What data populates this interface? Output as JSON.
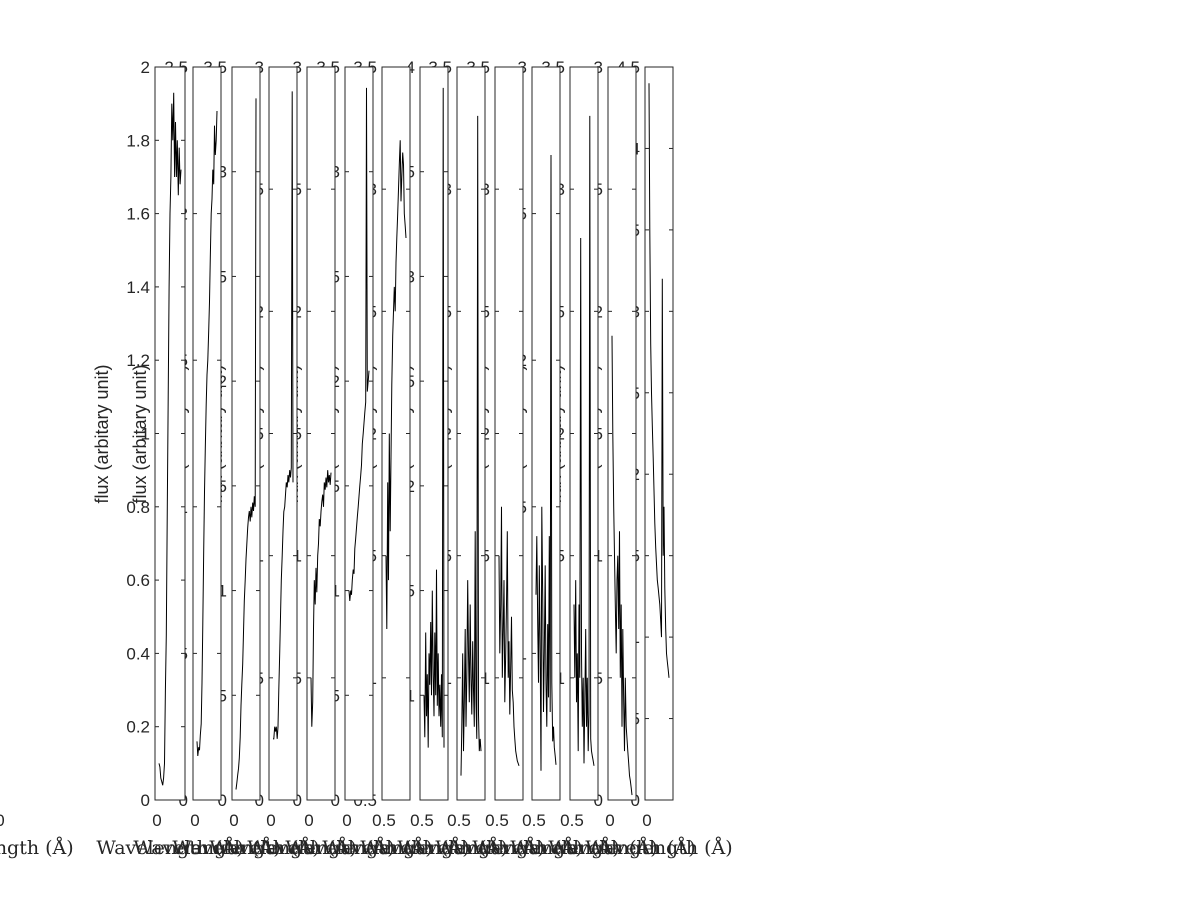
{
  "chart_data": [
    {
      "type": "line",
      "title": "",
      "xlabel": "Wavelength ($\\AA$)",
      "ylabel": "flux (arbitary unit)",
      "ylim": [
        0,
        2
      ],
      "yticks": [
        0,
        0.2,
        0.4,
        0.6,
        0.8,
        1,
        1.2,
        1.4,
        1.6,
        1.8,
        2
      ],
      "xtick_labels": [
        "0"
      ],
      "grid": false,
      "series": [
        {
          "x": [
            0,
            1,
            2,
            3,
            4,
            5,
            6,
            7,
            8,
            9,
            10,
            11,
            12,
            13,
            14,
            15,
            16,
            17,
            18,
            19,
            20,
            21,
            22,
            23,
            24
          ],
          "values": [
            0.1,
            0.09,
            0.06,
            0.05,
            0.04,
            0.06,
            0.1,
            0.3,
            0.45,
            0.8,
            1.1,
            1.4,
            1.6,
            1.7,
            1.9,
            1.8,
            1.93,
            1.7,
            1.85,
            1.7,
            1.8,
            1.65,
            1.78,
            1.68,
            1.72
          ]
        }
      ]
    },
    {
      "type": "line",
      "title": "",
      "xlabel": "Wavelength ($\\AA$)",
      "ylabel": "flux (arbitary unit)",
      "ylim": [
        0,
        2.5
      ],
      "yticks": [
        0,
        0.5,
        1,
        1.5,
        2,
        2.5
      ],
      "xtick_labels": [
        "0"
      ],
      "grid": false,
      "series": [
        {
          "x": [
            0,
            1,
            2,
            3,
            4,
            5,
            6,
            7,
            8,
            9,
            10,
            11,
            12,
            13,
            14,
            15,
            16,
            17,
            18,
            19,
            20,
            21,
            22,
            23,
            24
          ],
          "values": [
            0.2,
            0.15,
            0.18,
            0.17,
            0.22,
            0.26,
            0.4,
            0.6,
            0.85,
            1.05,
            1.2,
            1.35,
            1.45,
            1.5,
            1.6,
            1.7,
            1.85,
            2.0,
            2.05,
            2.15,
            2.1,
            2.3,
            2.2,
            2.25,
            2.35
          ]
        }
      ]
    },
    {
      "type": "line",
      "title": "",
      "xlabel": "Wavelength ($\\AA$)",
      "ylabel": "flux (arbitary unit)",
      "ylim": [
        0,
        3.5
      ],
      "yticks": [
        0,
        0.5,
        1,
        1.5,
        2,
        2.5,
        3,
        3.5
      ],
      "xtick_labels": [
        "0"
      ],
      "grid": false,
      "series": [
        {
          "x": [
            0,
            1,
            2,
            3,
            4,
            5,
            6,
            7,
            8,
            9,
            10,
            11,
            12,
            13,
            14,
            15,
            16,
            17,
            18,
            19,
            20,
            21,
            22,
            23,
            24
          ],
          "values": [
            0.05,
            0.08,
            0.12,
            0.15,
            0.2,
            0.3,
            0.45,
            0.55,
            0.65,
            0.8,
            0.95,
            1.05,
            1.15,
            1.22,
            1.3,
            1.35,
            1.38,
            1.33,
            1.4,
            1.35,
            1.42,
            1.38,
            1.45,
            1.4,
            3.35
          ]
        }
      ]
    },
    {
      "type": "line",
      "title": "",
      "xlabel": "Wavelength ($\\AA$)",
      "ylabel": "flux (arbitary unit)",
      "ylim": [
        0,
        3
      ],
      "yticks": [
        0,
        0.5,
        1,
        1.5,
        2,
        2.5,
        3
      ],
      "xtick_labels": [
        "0"
      ],
      "grid": false,
      "series": [
        {
          "x": [
            0,
            1,
            2,
            3,
            4,
            5,
            6,
            7,
            8,
            9,
            10,
            11,
            12,
            13,
            14,
            15,
            16,
            17,
            18,
            19,
            20,
            21,
            22,
            23,
            24
          ],
          "values": [
            0.25,
            0.25,
            0.3,
            0.28,
            0.3,
            0.25,
            0.3,
            0.45,
            0.6,
            0.75,
            0.9,
            1.0,
            1.1,
            1.18,
            1.2,
            1.25,
            1.3,
            1.28,
            1.33,
            1.3,
            1.35,
            1.32,
            1.36,
            2.9,
            1.3
          ]
        }
      ]
    },
    {
      "type": "line",
      "title": "",
      "xlabel": "Wavelength ($\\AA$)",
      "ylabel": "flux (arbitary unit)",
      "ylim": [
        0,
        3
      ],
      "yticks": [
        0,
        0.5,
        1,
        1.5,
        2,
        2.5,
        3
      ],
      "xtick_labels": [
        "0"
      ],
      "grid": false,
      "series": [
        {
          "x": [
            0,
            1,
            2,
            3,
            4,
            5,
            6,
            7,
            8,
            9,
            10,
            11,
            12,
            13,
            14,
            15,
            16,
            17,
            18,
            19,
            20,
            21,
            22,
            23,
            24
          ],
          "values": [
            0.5,
            0.3,
            0.4,
            0.7,
            0.9,
            0.8,
            0.95,
            0.85,
            1.0,
            1.05,
            1.15,
            1.12,
            1.18,
            1.22,
            1.25,
            1.2,
            1.3,
            1.27,
            1.32,
            1.28,
            1.35,
            1.3,
            1.33,
            1.29,
            1.34
          ]
        }
      ]
    },
    {
      "type": "line",
      "title": "",
      "xlabel": "Wavelength ($\\AA$)",
      "ylabel": "flux (arbitary unit)",
      "ylim": [
        0,
        3.5
      ],
      "yticks": [
        0,
        0.5,
        1,
        1.5,
        2,
        2.5,
        3,
        3.5
      ],
      "xtick_labels": [
        "0"
      ],
      "grid": false,
      "series": [
        {
          "x": [
            0,
            1,
            2,
            3,
            4,
            5,
            6,
            7,
            8,
            9,
            10,
            11,
            12,
            13,
            14,
            15,
            16,
            17,
            18,
            19,
            20,
            21,
            22,
            23,
            24
          ],
          "values": [
            1.0,
            0.95,
            1.0,
            0.98,
            1.05,
            1.1,
            1.08,
            1.2,
            1.25,
            1.3,
            1.35,
            1.4,
            1.45,
            1.5,
            1.55,
            1.6,
            1.7,
            1.75,
            1.8,
            1.85,
            1.9,
            3.4,
            1.95,
            2.0,
            2.05
          ]
        }
      ]
    },
    {
      "type": "line",
      "title": "",
      "xlabel": "Wavelength ($\\AA$)",
      "ylabel": "flux (arbitary unit)",
      "ylim": [
        0.5,
        3.5
      ],
      "yticks": [
        0.5,
        1,
        1.5,
        2,
        2.5,
        3,
        3.5
      ],
      "xtick_labels": [
        "0.5"
      ],
      "grid": false,
      "series": [
        {
          "x": [
            0,
            1,
            2,
            3,
            4,
            5,
            6,
            7,
            8,
            9,
            10,
            11,
            12,
            13,
            14,
            15,
            16,
            17,
            18,
            19,
            20,
            21,
            22,
            23,
            24
          ],
          "values": [
            1.5,
            1.2,
            1.8,
            1.4,
            2.0,
            1.6,
            1.9,
            2.2,
            2.4,
            2.5,
            2.6,
            2.5,
            2.7,
            2.8,
            2.9,
            3.0,
            3.1,
            3.2,
            2.95,
            3.05,
            3.15,
            3.1,
            2.9,
            2.85,
            2.8
          ]
        }
      ]
    },
    {
      "type": "line",
      "title": "",
      "xlabel": "Wavelength ($\\AA$)",
      "ylabel": "flux (arbitary unit)",
      "ylim": [
        0.5,
        4
      ],
      "yticks": [
        1,
        1.5,
        2,
        2.5,
        3,
        3.5,
        4
      ],
      "xtick_labels": [
        "0.5"
      ],
      "grid": false,
      "series": [
        {
          "x": [
            0,
            1,
            2,
            3,
            4,
            5,
            6,
            7,
            8,
            9,
            10,
            11,
            12,
            13,
            14,
            15,
            16,
            17,
            18,
            19,
            20,
            21,
            22,
            23,
            24
          ],
          "values": [
            1.0,
            0.8,
            1.3,
            0.9,
            1.1,
            0.75,
            1.2,
            1.05,
            1.35,
            1.0,
            1.5,
            1.1,
            0.9,
            1.3,
            1.0,
            1.6,
            0.95,
            1.2,
            0.9,
            1.05,
            0.85,
            1.1,
            0.8,
            3.9,
            0.75
          ]
        }
      ]
    },
    {
      "type": "line",
      "title": "",
      "xlabel": "Wavelength ($\\AA$)",
      "ylabel": "flux (arbitary unit)",
      "ylim": [
        0.5,
        3.5
      ],
      "yticks": [
        1,
        1.5,
        2,
        2.5,
        3,
        3.5
      ],
      "xtick_labels": [
        "0.5"
      ],
      "grid": false,
      "series": [
        {
          "x": [
            0,
            1,
            2,
            3,
            4,
            5,
            6,
            7,
            8,
            9,
            10,
            11,
            12,
            13,
            14,
            15,
            16,
            17,
            18,
            19,
            20,
            21,
            22,
            23,
            24
          ],
          "values": [
            0.6,
            0.8,
            1.1,
            0.7,
            0.9,
            1.2,
            0.8,
            1.0,
            1.4,
            1.1,
            0.9,
            1.3,
            1.0,
            0.85,
            1.15,
            0.95,
            0.8,
            1.6,
            0.9,
            0.75,
            3.3,
            0.85,
            0.7,
            0.75,
            0.7
          ]
        }
      ]
    },
    {
      "type": "line",
      "title": "",
      "xlabel": "Wavelength ($\\AA$)",
      "ylabel": "flux (arbitary unit)",
      "ylim": [
        0.5,
        3.5
      ],
      "yticks": [
        1,
        1.5,
        2,
        2.5,
        3,
        3.5
      ],
      "xtick_labels": [
        "0.5"
      ],
      "grid": false,
      "series": [
        {
          "x": [
            0,
            1,
            2,
            3,
            4,
            5,
            6,
            7,
            8,
            9,
            10,
            11,
            12,
            13,
            14,
            15,
            16,
            17,
            18,
            19,
            20,
            21,
            22,
            23,
            24
          ],
          "values": [
            1.5,
            1.1,
            1.3,
            1.7,
            1.0,
            1.2,
            1.4,
            0.9,
            1.1,
            1.3,
            1.6,
            1.0,
            1.15,
            0.85,
            1.05,
            1.25,
            0.95,
            0.9,
            0.8,
            0.75,
            0.7,
            0.68,
            0.66,
            0.65,
            0.64
          ]
        }
      ]
    },
    {
      "type": "line",
      "title": "",
      "xlabel": "Wavelength ($\\AA$)",
      "ylabel": "flux (arbitary unit)",
      "ylim": [
        0.5,
        3
      ],
      "yticks": [
        1,
        1.5,
        2,
        2.5,
        3
      ],
      "xtick_labels": [
        "0.5"
      ],
      "grid": false,
      "series": [
        {
          "x": [
            0,
            1,
            2,
            3,
            4,
            5,
            6,
            7,
            8,
            9,
            10,
            11,
            12,
            13,
            14,
            15,
            16,
            17,
            18,
            19,
            20,
            21,
            22,
            23,
            24
          ],
          "values": [
            1.2,
            1.4,
            1.1,
            0.9,
            1.3,
            1.0,
            0.6,
            1.5,
            1.2,
            0.8,
            1.0,
            1.3,
            0.9,
            0.75,
            1.1,
            0.85,
            1.4,
            0.8,
            2.7,
            0.9,
            0.7,
            0.75,
            0.68,
            0.65,
            0.62
          ]
        }
      ]
    },
    {
      "type": "line",
      "title": "",
      "xlabel": "Wavelength ($\\AA$)",
      "ylabel": "flux (arbitary unit)",
      "ylim": [
        0.5,
        3.5
      ],
      "yticks": [
        1,
        1.5,
        2,
        2.5,
        3,
        3.5
      ],
      "xtick_labels": [
        "0.5"
      ],
      "grid": false,
      "series": [
        {
          "x": [
            0,
            1,
            2,
            3,
            4,
            5,
            6,
            7,
            8,
            9,
            10,
            11,
            12,
            13,
            14,
            15,
            16,
            17,
            18,
            19,
            20,
            21,
            22,
            23,
            24
          ],
          "values": [
            1.3,
            1.0,
            1.4,
            0.9,
            1.1,
            0.7,
            1.3,
            1.0,
            2.8,
            1.1,
            0.8,
            1.0,
            0.65,
            0.9,
            1.2,
            0.8,
            1.0,
            0.7,
            0.85,
            3.3,
            0.75,
            0.7,
            0.68,
            0.66,
            0.64
          ]
        }
      ]
    },
    {
      "type": "line",
      "title": "",
      "xlabel": "Wavelength ($\\AA$)",
      "ylabel": "flux (arbitary unit)",
      "ylim": [
        0,
        3
      ],
      "yticks": [
        0,
        0.5,
        1,
        1.5,
        2,
        2.5,
        3
      ],
      "xtick_labels": [
        "0"
      ],
      "grid": false,
      "series": [
        {
          "x": [
            0,
            1,
            2,
            3,
            4,
            5,
            6,
            7,
            8,
            9,
            10,
            11,
            12,
            13,
            14,
            15,
            16,
            17,
            18,
            19,
            20,
            21,
            22,
            23,
            24
          ],
          "values": [
            1.9,
            1.5,
            1.2,
            1.0,
            0.8,
            0.6,
            0.9,
            1.0,
            0.7,
            1.1,
            0.5,
            0.8,
            0.3,
            0.7,
            0.4,
            0.2,
            0.5,
            0.3,
            0.25,
            0.2,
            0.15,
            0.1,
            0.08,
            0.05,
            0.02
          ]
        }
      ]
    },
    {
      "type": "line",
      "title": "",
      "xlabel": "Wavelength ($\\AA$)",
      "ylabel": "flux (arbitary unit)",
      "ylim": [
        0,
        4.5
      ],
      "yticks": [
        0,
        0.5,
        1,
        1.5,
        2,
        2.5,
        3,
        3.5,
        4,
        4.5
      ],
      "xtick_labels": [
        "0"
      ],
      "grid": false,
      "series": [
        {
          "x": [
            0,
            1,
            2,
            3,
            4,
            5,
            6,
            7,
            8,
            9,
            10,
            11,
            12,
            13,
            14,
            15,
            16,
            17,
            18,
            19,
            20,
            21,
            22,
            23,
            24
          ],
          "values": [
            4.4,
            3.5,
            2.8,
            2.5,
            2.3,
            2.1,
            1.9,
            1.7,
            1.55,
            1.45,
            1.35,
            1.3,
            1.25,
            1.2,
            1.1,
            1.0,
            3.2,
            1.5,
            1.8,
            1.3,
            1.05,
            0.9,
            0.85,
            0.8,
            0.75
          ]
        }
      ]
    },
    {
      "type": "line",
      "title": "",
      "xlabel": "Wavelength ($\\AA$)",
      "ylabel": "",
      "ylim": [
        0,
        4.5
      ],
      "yticks": [],
      "xtick_labels": [
        "0"
      ],
      "grid": false,
      "series": [
        {
          "x": [
            0,
            1,
            2,
            3,
            4,
            5,
            6,
            7,
            8,
            9,
            10,
            11,
            12,
            13,
            14,
            15,
            16,
            17,
            18,
            19,
            20,
            21,
            22,
            23,
            24
          ],
          "values": [
            4.3,
            3.8,
            3.2,
            2.8,
            2.5,
            2.2,
            2.0,
            1.8,
            1.6,
            1.4,
            1.25,
            1.1,
            1.0,
            0.9,
            0.8,
            1.8,
            0.6,
            0.7,
            0.55,
            2.2,
            0.5,
            0.45,
            2.3,
            0.35,
            0.3
          ]
        }
      ]
    }
  ]
}
